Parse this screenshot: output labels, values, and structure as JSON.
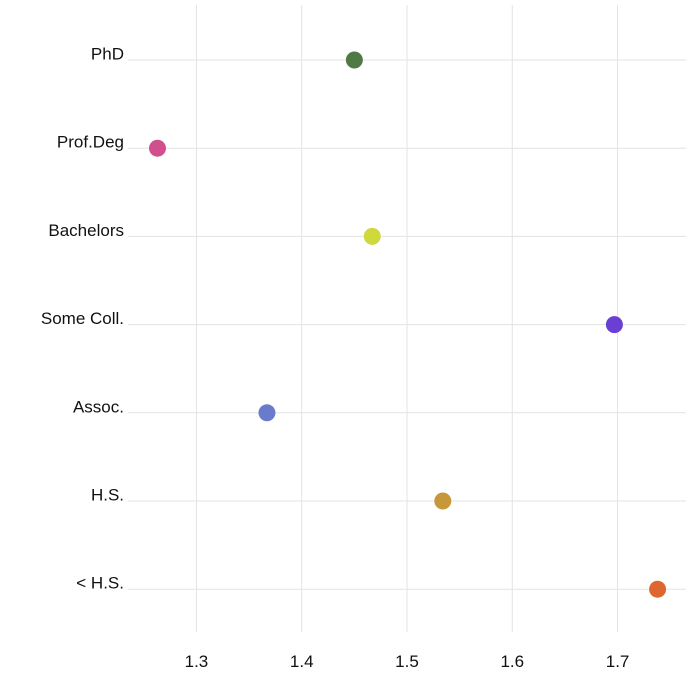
{
  "chart_data": {
    "type": "scatter",
    "title": "",
    "xlabel": "",
    "ylabel": "",
    "xlim": [
      1.235,
      1.765
    ],
    "x_ticks": [
      1.3,
      1.4,
      1.5,
      1.6,
      1.7
    ],
    "x_tick_labels": [
      "1.3",
      "1.4",
      "1.5",
      "1.6",
      "1.7"
    ],
    "grid": true,
    "legend": "none",
    "categories": [
      "PhD",
      "Prof.Deg",
      "Bachelors",
      "Some Coll.",
      "Assoc.",
      "H.S.",
      "< H.S."
    ],
    "values": [
      1.45,
      1.263,
      1.467,
      1.697,
      1.367,
      1.534,
      1.738
    ],
    "colors": [
      "#507a45",
      "#d24f8f",
      "#cfd93b",
      "#6a3fd3",
      "#6a7bcc",
      "#c8973a",
      "#de6630"
    ]
  }
}
